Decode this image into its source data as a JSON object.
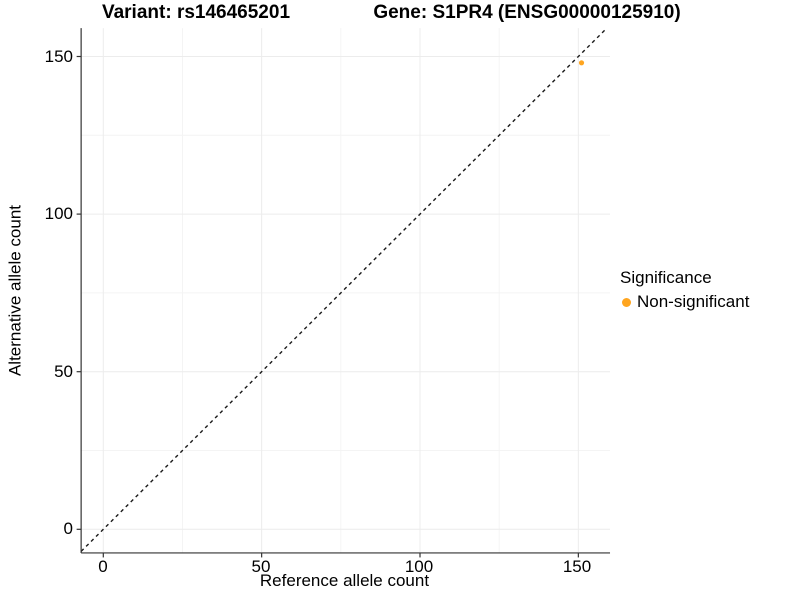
{
  "titles": {
    "variant": "Variant: rs146465201",
    "gene": "Gene: S1PR4 (ENSG00000125910)"
  },
  "chart_data": {
    "type": "scatter",
    "xlabel": "Reference allele count",
    "ylabel": "Alternative allele count",
    "x_ticks": [
      0,
      50,
      100,
      150
    ],
    "y_ticks": [
      0,
      50,
      100,
      150
    ],
    "x_tick_labels": [
      "0",
      "50",
      "100",
      "150"
    ],
    "y_tick_labels": [
      "0",
      "50",
      "100",
      "150"
    ],
    "x_minor_ticks": [
      25,
      75,
      125
    ],
    "y_minor_ticks": [
      25,
      75,
      125
    ],
    "xlim": [
      -7,
      160
    ],
    "ylim": [
      -7.5,
      159
    ],
    "grid": "major+minor",
    "points": [
      {
        "x": 151,
        "y": 148,
        "series": "Non-significant",
        "color": "#FFA51F"
      }
    ],
    "reference_line": {
      "type": "identity",
      "slope": 1,
      "intercept": 0,
      "style": "dashed",
      "color": "#1a1a1a"
    },
    "legend": {
      "title": "Significance",
      "position": "right",
      "entries": [
        {
          "label": "Non-significant",
          "color": "#FFA51F"
        }
      ]
    },
    "colors": {
      "major_grid": "#ececec",
      "minor_grid": "#f4f4f4",
      "axis_line": "#333333"
    }
  }
}
